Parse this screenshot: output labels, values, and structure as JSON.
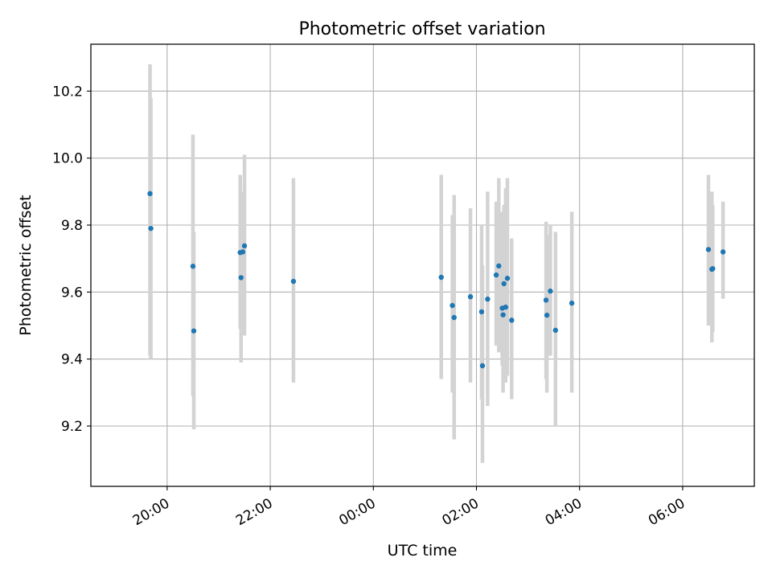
{
  "chart_data": {
    "type": "scatter",
    "title": "Photometric offset variation",
    "xlabel": "UTC time",
    "ylabel": "Photometric offset",
    "x_tick_labels": [
      "20:00",
      "22:00",
      "00:00",
      "02:00",
      "04:00",
      "06:00"
    ],
    "x_tick_hours": [
      20,
      22,
      24,
      26,
      28,
      30
    ],
    "xlim_hours": [
      18.52,
      31.39
    ],
    "ylim": [
      9.02,
      10.34
    ],
    "y_ticks": [
      9.2,
      9.4,
      9.6,
      9.8,
      10.0,
      10.2
    ],
    "y_tick_labels": [
      "9.2",
      "9.4",
      "9.6",
      "9.8",
      "10.0",
      "10.2"
    ],
    "grid": true,
    "series": [
      {
        "kind": "errorbar",
        "marker_color": "#1f77b4",
        "errorbar_color": "#d3d3d3",
        "points": [
          {
            "t": "19:40",
            "y": 9.894,
            "low": 9.41,
            "high": 10.28
          },
          {
            "t": "19:41",
            "y": 9.79,
            "low": 9.4,
            "high": 10.18
          },
          {
            "t": "20:30",
            "y": 9.677,
            "low": 9.29,
            "high": 10.07
          },
          {
            "t": "20:31",
            "y": 9.484,
            "low": 9.19,
            "high": 9.78
          },
          {
            "t": "21:25",
            "y": 9.718,
            "low": 9.49,
            "high": 9.95
          },
          {
            "t": "21:26",
            "y": 9.643,
            "low": 9.39,
            "high": 9.9
          },
          {
            "t": "21:28",
            "y": 9.72,
            "low": 9.55,
            "high": 9.87
          },
          {
            "t": "21:30",
            "y": 9.738,
            "low": 9.47,
            "high": 10.01
          },
          {
            "t": "22:27",
            "y": 9.632,
            "low": 9.33,
            "high": 9.94
          },
          {
            "t": "01:19",
            "y": 9.644,
            "low": 9.34,
            "high": 9.95
          },
          {
            "t": "01:32",
            "y": 9.56,
            "low": 9.3,
            "high": 9.83
          },
          {
            "t": "01:34",
            "y": 9.524,
            "low": 9.16,
            "high": 9.89
          },
          {
            "t": "01:53",
            "y": 9.586,
            "low": 9.33,
            "high": 9.85
          },
          {
            "t": "02:06",
            "y": 9.541,
            "low": 9.28,
            "high": 9.8
          },
          {
            "t": "02:07",
            "y": 9.38,
            "low": 9.09,
            "high": 9.68
          },
          {
            "t": "02:13",
            "y": 9.579,
            "low": 9.26,
            "high": 9.9
          },
          {
            "t": "02:23",
            "y": 9.651,
            "low": 9.44,
            "high": 9.87
          },
          {
            "t": "02:26",
            "y": 9.678,
            "low": 9.42,
            "high": 9.94
          },
          {
            "t": "02:30",
            "y": 9.552,
            "low": 9.38,
            "high": 9.84
          },
          {
            "t": "02:31",
            "y": 9.532,
            "low": 9.3,
            "high": 9.78
          },
          {
            "t": "02:32",
            "y": 9.625,
            "low": 9.4,
            "high": 9.86
          },
          {
            "t": "02:34",
            "y": 9.555,
            "low": 9.33,
            "high": 9.91
          },
          {
            "t": "02:36",
            "y": 9.641,
            "low": 9.35,
            "high": 9.94
          },
          {
            "t": "02:41",
            "y": 9.516,
            "low": 9.28,
            "high": 9.76
          },
          {
            "t": "03:21",
            "y": 9.576,
            "low": 9.34,
            "high": 9.81
          },
          {
            "t": "03:22",
            "y": 9.531,
            "low": 9.3,
            "high": 9.77
          },
          {
            "t": "03:26",
            "y": 9.603,
            "low": 9.41,
            "high": 9.8
          },
          {
            "t": "03:32",
            "y": 9.486,
            "low": 9.2,
            "high": 9.78
          },
          {
            "t": "03:51",
            "y": 9.567,
            "low": 9.3,
            "high": 9.84
          },
          {
            "t": "06:30",
            "y": 9.727,
            "low": 9.5,
            "high": 9.95
          },
          {
            "t": "06:34",
            "y": 9.668,
            "low": 9.45,
            "high": 9.9
          },
          {
            "t": "06:35",
            "y": 9.67,
            "low": 9.48,
            "high": 9.86
          },
          {
            "t": "06:47",
            "y": 9.72,
            "low": 9.58,
            "high": 9.87
          }
        ]
      }
    ]
  }
}
